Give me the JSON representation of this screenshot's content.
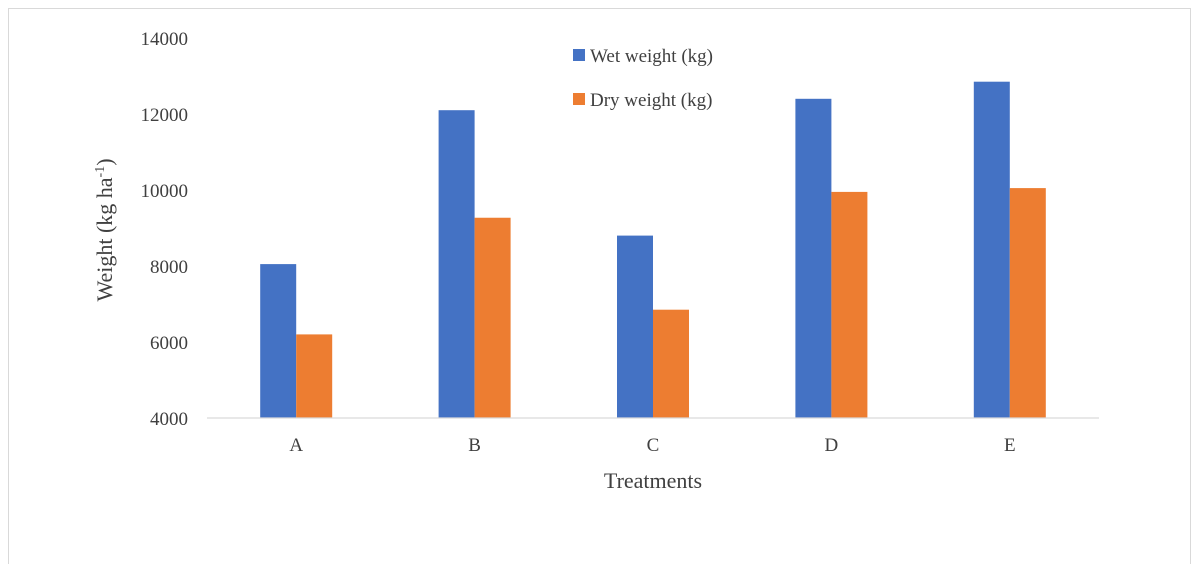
{
  "chart_data": {
    "type": "bar",
    "categories": [
      "A",
      "B",
      "C",
      "D",
      "E"
    ],
    "series": [
      {
        "name": "Wet weight (kg)",
        "values": [
          8050,
          12100,
          8800,
          12400,
          12850
        ],
        "color": "#4472c4"
      },
      {
        "name": "Dry weight (kg)",
        "values": [
          6200,
          9270,
          6850,
          9950,
          10050
        ],
        "color": "#ed7d31"
      }
    ],
    "xlabel": "Treatments",
    "ylabel": "Weight (kg ha",
    "ylabel_superscript": "-1",
    "ylabel_suffix": ")",
    "ylim": [
      4000,
      14000
    ],
    "yticks": [
      "4000",
      "6000",
      "8000",
      "10000",
      "12000",
      "14000"
    ],
    "grid": false,
    "legend_position": "top-center"
  }
}
